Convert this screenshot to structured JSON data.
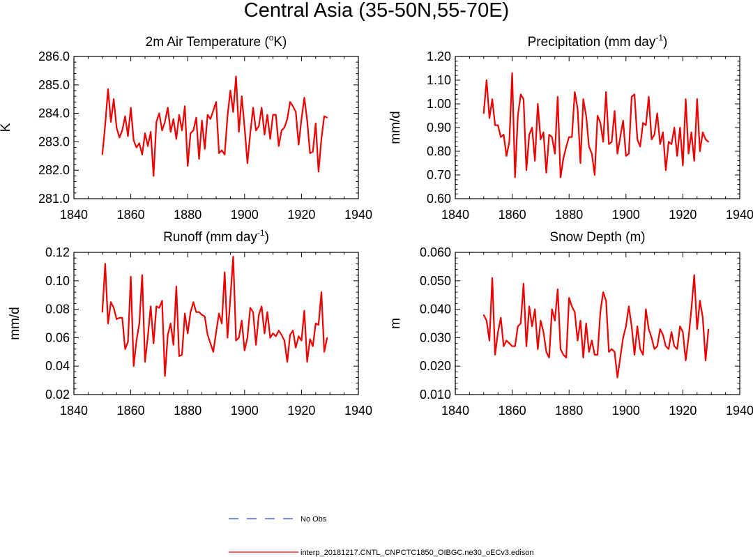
{
  "figure": {
    "title": "Central Asia (35-50N,55-70E)",
    "legend": [
      {
        "label": "No Obs",
        "color": "#3344dd",
        "dash": "dashed"
      },
      {
        "label": "interp_20181217.CNTL_CNPCTC1850_OIBGC.ne30_oECv3.edison",
        "color": "#ee0000",
        "dash": "solid"
      }
    ]
  },
  "chart_data": [
    {
      "type": "line",
      "title_main": "2m Air Temperature (",
      "title_sup": "o",
      "title_tail": "K)",
      "xlabel": "",
      "ylabel": "K",
      "xlim": [
        1840,
        1940
      ],
      "ylim": [
        281.0,
        286.0
      ],
      "xticks": [
        1840,
        1860,
        1880,
        1900,
        1920,
        1940
      ],
      "yticks": [
        "281.0",
        "282.0",
        "283.0",
        "284.0",
        "285.0",
        "286.0"
      ],
      "series": [
        {
          "name": "CNTL",
          "color": "#ee0000",
          "x": [
            1850,
            1851,
            1852,
            1853,
            1854,
            1855,
            1856,
            1857,
            1858,
            1859,
            1860,
            1861,
            1862,
            1863,
            1864,
            1865,
            1866,
            1867,
            1868,
            1869,
            1870,
            1871,
            1872,
            1873,
            1874,
            1875,
            1876,
            1877,
            1878,
            1879,
            1880,
            1881,
            1882,
            1883,
            1884,
            1885,
            1886,
            1887,
            1888,
            1889,
            1890,
            1891,
            1892,
            1893,
            1894,
            1895,
            1896,
            1897,
            1898,
            1899,
            1900,
            1901,
            1902,
            1903,
            1904,
            1905,
            1906,
            1907,
            1908,
            1909,
            1910,
            1911,
            1912,
            1913,
            1914,
            1915,
            1916,
            1917,
            1918,
            1919,
            1920,
            1921,
            1922,
            1923,
            1924,
            1925,
            1926,
            1927,
            1928,
            1929
          ],
          "values": [
            282.55,
            283.6,
            284.85,
            283.7,
            284.5,
            283.5,
            283.15,
            283.4,
            283.9,
            283.2,
            284.2,
            283.05,
            282.8,
            282.95,
            282.55,
            283.3,
            282.85,
            283.35,
            281.8,
            283.7,
            284.0,
            283.4,
            283.7,
            284.2,
            283.35,
            283.8,
            283.1,
            283.95,
            283.4,
            284.25,
            282.15,
            283.3,
            283.4,
            283.85,
            282.4,
            283.75,
            282.75,
            283.95,
            283.8,
            284.1,
            284.4,
            282.6,
            282.7,
            282.55,
            283.9,
            284.8,
            284.05,
            285.3,
            283.35,
            284.6,
            283.5,
            282.25,
            283.3,
            284.2,
            283.4,
            283.55,
            284.2,
            283.25,
            283.95,
            283.1,
            283.95,
            283.95,
            282.85,
            283.4,
            283.5,
            283.8,
            284.4,
            284.25,
            284.05,
            282.9,
            283.8,
            284.55,
            283.75,
            282.6,
            282.65,
            283.65,
            281.95,
            283.1,
            283.9,
            283.85
          ]
        }
      ]
    },
    {
      "type": "line",
      "title_main": "Precipitation (mm day",
      "title_sup": "-1",
      "title_tail": ")",
      "xlabel": "",
      "ylabel": "mm/d",
      "xlim": [
        1840,
        1940
      ],
      "ylim": [
        0.6,
        1.2
      ],
      "xticks": [
        1840,
        1860,
        1880,
        1900,
        1920,
        1940
      ],
      "yticks": [
        "0.60",
        "0.70",
        "0.80",
        "0.90",
        "1.00",
        "1.10",
        "1.20"
      ],
      "series": [
        {
          "name": "CNTL",
          "color": "#ee0000",
          "x": [
            1850,
            1851,
            1852,
            1853,
            1854,
            1855,
            1856,
            1857,
            1858,
            1859,
            1860,
            1861,
            1862,
            1863,
            1864,
            1865,
            1866,
            1867,
            1868,
            1869,
            1870,
            1871,
            1872,
            1873,
            1874,
            1875,
            1876,
            1877,
            1878,
            1879,
            1880,
            1881,
            1882,
            1883,
            1884,
            1885,
            1886,
            1887,
            1888,
            1889,
            1890,
            1891,
            1892,
            1893,
            1894,
            1895,
            1896,
            1897,
            1898,
            1899,
            1900,
            1901,
            1902,
            1903,
            1904,
            1905,
            1906,
            1907,
            1908,
            1909,
            1910,
            1911,
            1912,
            1913,
            1914,
            1915,
            1916,
            1917,
            1918,
            1919,
            1920,
            1921,
            1922,
            1923,
            1924,
            1925,
            1926,
            1927,
            1928,
            1929
          ],
          "values": [
            0.96,
            1.1,
            0.94,
            1.02,
            0.91,
            0.91,
            0.86,
            0.87,
            0.78,
            0.84,
            1.13,
            0.69,
            0.95,
            1.04,
            1.02,
            0.72,
            0.87,
            0.9,
            0.76,
            1.0,
            0.85,
            0.88,
            0.71,
            0.87,
            0.86,
            0.79,
            1.03,
            0.69,
            0.77,
            0.82,
            0.86,
            0.86,
            1.05,
            0.98,
            0.75,
            1.02,
            0.95,
            0.82,
            0.79,
            0.7,
            0.95,
            0.92,
            0.84,
            1.05,
            0.83,
            0.84,
            0.97,
            0.79,
            0.86,
            0.93,
            0.78,
            0.79,
            1.03,
            1.04,
            0.85,
            0.82,
            0.92,
            0.91,
            1.03,
            0.85,
            0.87,
            0.96,
            0.83,
            0.88,
            0.72,
            0.84,
            0.83,
            0.9,
            0.78,
            0.9,
            0.74,
            1.02,
            0.79,
            0.88,
            0.76,
            1.02,
            0.8,
            0.88,
            0.85,
            0.84
          ]
        }
      ]
    },
    {
      "type": "line",
      "title_main": "Runoff (mm day",
      "title_sup": "-1",
      "title_tail": ")",
      "xlabel": "",
      "ylabel": "mm/d",
      "xlim": [
        1840,
        1940
      ],
      "ylim": [
        0.02,
        0.12
      ],
      "xticks": [
        1840,
        1860,
        1880,
        1900,
        1920,
        1940
      ],
      "yticks": [
        "0.02",
        "0.04",
        "0.06",
        "0.08",
        "0.10",
        "0.12"
      ],
      "series": [
        {
          "name": "CNTL",
          "color": "#ee0000",
          "x": [
            1850,
            1851,
            1852,
            1853,
            1854,
            1855,
            1856,
            1857,
            1858,
            1859,
            1860,
            1861,
            1862,
            1863,
            1864,
            1865,
            1866,
            1867,
            1868,
            1869,
            1870,
            1871,
            1872,
            1873,
            1874,
            1875,
            1876,
            1877,
            1878,
            1879,
            1880,
            1881,
            1882,
            1883,
            1884,
            1885,
            1886,
            1887,
            1888,
            1889,
            1890,
            1891,
            1892,
            1893,
            1894,
            1895,
            1896,
            1897,
            1898,
            1899,
            1900,
            1901,
            1902,
            1903,
            1904,
            1905,
            1906,
            1907,
            1908,
            1909,
            1910,
            1911,
            1912,
            1913,
            1914,
            1915,
            1916,
            1917,
            1918,
            1919,
            1920,
            1921,
            1922,
            1923,
            1924,
            1925,
            1926,
            1927,
            1928,
            1929
          ],
          "values": [
            0.078,
            0.112,
            0.07,
            0.085,
            0.081,
            0.073,
            0.074,
            0.074,
            0.052,
            0.057,
            0.103,
            0.04,
            0.058,
            0.07,
            0.104,
            0.043,
            0.061,
            0.082,
            0.056,
            0.082,
            0.081,
            0.086,
            0.033,
            0.062,
            0.07,
            0.055,
            0.096,
            0.047,
            0.048,
            0.077,
            0.063,
            0.078,
            0.085,
            0.078,
            0.078,
            0.076,
            0.075,
            0.062,
            0.056,
            0.05,
            0.064,
            0.077,
            0.07,
            0.106,
            0.06,
            0.088,
            0.117,
            0.058,
            0.06,
            0.072,
            0.051,
            0.06,
            0.081,
            0.078,
            0.055,
            0.076,
            0.082,
            0.063,
            0.078,
            0.06,
            0.063,
            0.061,
            0.065,
            0.062,
            0.058,
            0.043,
            0.062,
            0.065,
            0.053,
            0.061,
            0.058,
            0.079,
            0.043,
            0.059,
            0.054,
            0.07,
            0.069,
            0.092,
            0.05,
            0.06
          ]
        }
      ]
    },
    {
      "type": "line",
      "title_main": "Snow Depth (m)",
      "title_sup": "",
      "title_tail": "",
      "xlabel": "",
      "ylabel": "m",
      "xlim": [
        1840,
        1940
      ],
      "ylim": [
        0.01,
        0.06
      ],
      "xticks": [
        1840,
        1860,
        1880,
        1900,
        1920,
        1940
      ],
      "yticks": [
        "0.010",
        "0.020",
        "0.030",
        "0.040",
        "0.050",
        "0.060"
      ],
      "series": [
        {
          "name": "CNTL",
          "color": "#ee0000",
          "x": [
            1850,
            1851,
            1852,
            1853,
            1854,
            1855,
            1856,
            1857,
            1858,
            1859,
            1860,
            1861,
            1862,
            1863,
            1864,
            1865,
            1866,
            1867,
            1868,
            1869,
            1870,
            1871,
            1872,
            1873,
            1874,
            1875,
            1876,
            1877,
            1878,
            1879,
            1880,
            1881,
            1882,
            1883,
            1884,
            1885,
            1886,
            1887,
            1888,
            1889,
            1890,
            1891,
            1892,
            1893,
            1894,
            1895,
            1896,
            1897,
            1898,
            1899,
            1900,
            1901,
            1902,
            1903,
            1904,
            1905,
            1906,
            1907,
            1908,
            1909,
            1910,
            1911,
            1912,
            1913,
            1914,
            1915,
            1916,
            1917,
            1918,
            1919,
            1920,
            1921,
            1922,
            1923,
            1924,
            1925,
            1926,
            1927,
            1928,
            1929
          ],
          "values": [
            0.038,
            0.036,
            0.029,
            0.051,
            0.024,
            0.032,
            0.037,
            0.027,
            0.029,
            0.028,
            0.027,
            0.027,
            0.034,
            0.035,
            0.049,
            0.027,
            0.041,
            0.034,
            0.04,
            0.026,
            0.036,
            0.032,
            0.025,
            0.023,
            0.04,
            0.036,
            0.047,
            0.026,
            0.024,
            0.023,
            0.044,
            0.041,
            0.039,
            0.029,
            0.036,
            0.023,
            0.035,
            0.025,
            0.029,
            0.024,
            0.024,
            0.039,
            0.046,
            0.043,
            0.025,
            0.026,
            0.025,
            0.016,
            0.023,
            0.03,
            0.034,
            0.041,
            0.034,
            0.024,
            0.034,
            0.026,
            0.024,
            0.04,
            0.033,
            0.03,
            0.026,
            0.027,
            0.033,
            0.031,
            0.027,
            0.026,
            0.032,
            0.027,
            0.026,
            0.034,
            0.032,
            0.022,
            0.03,
            0.04,
            0.052,
            0.033,
            0.043,
            0.037,
            0.022,
            0.033
          ]
        }
      ]
    }
  ]
}
